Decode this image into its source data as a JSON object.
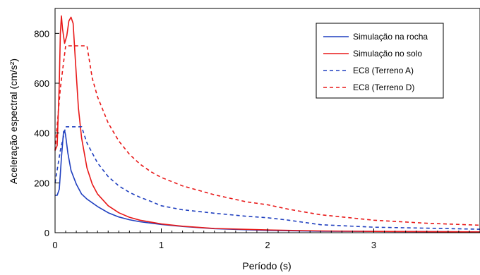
{
  "chart_data": {
    "type": "line",
    "title": "",
    "xlabel": "Período (s)",
    "ylabel": "Aceleração espectral (cm/s²)",
    "xlim": [
      0,
      4
    ],
    "ylim": [
      0,
      900
    ],
    "xticks": [
      0,
      1,
      2,
      3
    ],
    "yticks": [
      0,
      200,
      400,
      600,
      800
    ],
    "grid": false,
    "legend": "top-right",
    "series": [
      {
        "name": "Simulação na rocha",
        "color": "#1f3fbf",
        "dash": "solid",
        "points": [
          [
            0,
            150
          ],
          [
            0.02,
            150
          ],
          [
            0.04,
            175
          ],
          [
            0.06,
            300
          ],
          [
            0.08,
            405
          ],
          [
            0.09,
            410
          ],
          [
            0.1,
            390
          ],
          [
            0.12,
            320
          ],
          [
            0.15,
            250
          ],
          [
            0.2,
            195
          ],
          [
            0.25,
            155
          ],
          [
            0.3,
            135
          ],
          [
            0.4,
            105
          ],
          [
            0.5,
            80
          ],
          [
            0.6,
            63
          ],
          [
            0.7,
            52
          ],
          [
            0.8,
            44
          ],
          [
            1.0,
            33
          ],
          [
            1.2,
            25
          ],
          [
            1.5,
            16
          ],
          [
            2.0,
            9
          ],
          [
            2.5,
            6
          ],
          [
            3.0,
            5
          ],
          [
            3.5,
            4
          ],
          [
            4.0,
            3
          ]
        ]
      },
      {
        "name": "Simulação no solo",
        "color": "#e81818",
        "dash": "solid",
        "points": [
          [
            0,
            330
          ],
          [
            0.02,
            350
          ],
          [
            0.04,
            600
          ],
          [
            0.05,
            800
          ],
          [
            0.06,
            870
          ],
          [
            0.07,
            820
          ],
          [
            0.09,
            760
          ],
          [
            0.11,
            790
          ],
          [
            0.13,
            850
          ],
          [
            0.15,
            865
          ],
          [
            0.17,
            840
          ],
          [
            0.19,
            700
          ],
          [
            0.22,
            500
          ],
          [
            0.25,
            380
          ],
          [
            0.3,
            260
          ],
          [
            0.35,
            195
          ],
          [
            0.4,
            155
          ],
          [
            0.5,
            108
          ],
          [
            0.6,
            80
          ],
          [
            0.7,
            62
          ],
          [
            0.8,
            50
          ],
          [
            1.0,
            35
          ],
          [
            1.2,
            26
          ],
          [
            1.5,
            17
          ],
          [
            2.0,
            11
          ],
          [
            2.5,
            7
          ],
          [
            3.0,
            5
          ],
          [
            3.5,
            4
          ],
          [
            4.0,
            3
          ]
        ]
      },
      {
        "name": "EC8 (Terreno A)",
        "color": "#1f3fbf",
        "dash": "dashed",
        "points": [
          [
            0,
            200
          ],
          [
            0.05,
            330
          ],
          [
            0.1,
            425
          ],
          [
            0.25,
            425
          ],
          [
            0.3,
            360
          ],
          [
            0.4,
            280
          ],
          [
            0.5,
            225
          ],
          [
            0.6,
            188
          ],
          [
            0.7,
            162
          ],
          [
            0.8,
            142
          ],
          [
            0.9,
            126
          ],
          [
            1.0,
            108
          ],
          [
            1.2,
            92
          ],
          [
            1.5,
            78
          ],
          [
            1.8,
            66
          ],
          [
            2.0,
            60
          ],
          [
            2.2,
            50
          ],
          [
            2.5,
            32
          ],
          [
            3.0,
            22
          ],
          [
            3.5,
            18
          ],
          [
            4.0,
            14
          ]
        ]
      },
      {
        "name": "EC8 (Terreno D)",
        "color": "#e81818",
        "dash": "dashed",
        "points": [
          [
            0,
            330
          ],
          [
            0.05,
            580
          ],
          [
            0.1,
            750
          ],
          [
            0.3,
            750
          ],
          [
            0.35,
            620
          ],
          [
            0.4,
            545
          ],
          [
            0.5,
            440
          ],
          [
            0.6,
            368
          ],
          [
            0.7,
            315
          ],
          [
            0.8,
            275
          ],
          [
            0.9,
            245
          ],
          [
            1.0,
            222
          ],
          [
            1.2,
            188
          ],
          [
            1.5,
            152
          ],
          [
            1.8,
            124
          ],
          [
            2.0,
            112
          ],
          [
            2.2,
            94
          ],
          [
            2.5,
            72
          ],
          [
            3.0,
            50
          ],
          [
            3.5,
            38
          ],
          [
            4.0,
            30
          ]
        ]
      }
    ]
  }
}
